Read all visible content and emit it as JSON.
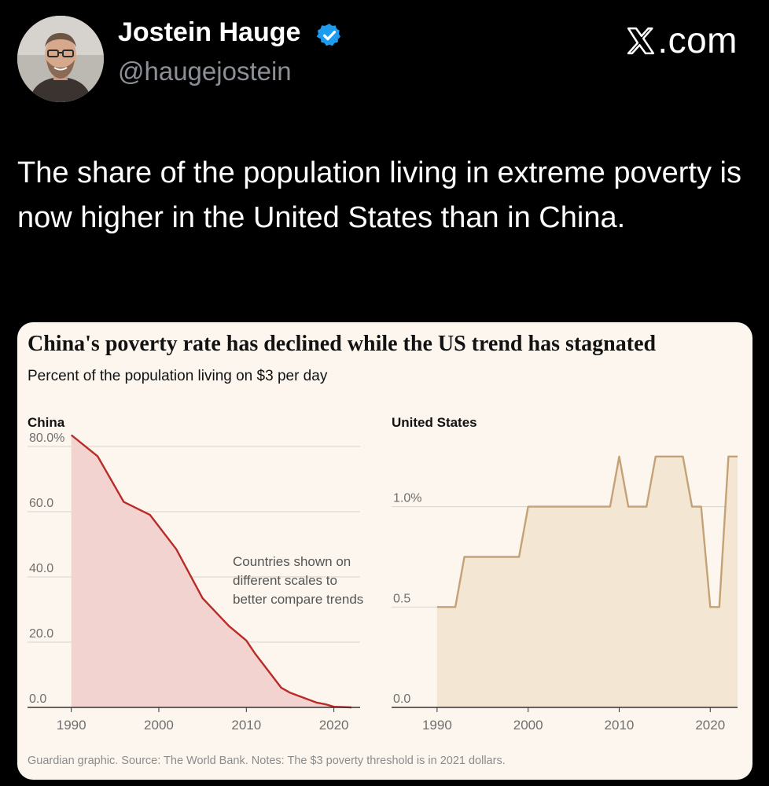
{
  "author": {
    "name": "Jostein Hauge",
    "handle": "@haugejostein",
    "verified_icon": "verified-badge-icon",
    "verified_color": "#1d9bf0"
  },
  "site": {
    "label": ".com",
    "logo_icon": "x-logo-icon"
  },
  "tweet": {
    "text": "The share of the population living in extreme poverty is now higher in the United States than in China."
  },
  "chart_card": {
    "title": "China's poverty rate has declined while the US trend has stagnated",
    "subtitle": "Percent of the population living on $3 per day",
    "annotation": [
      "Countries shown on",
      "different scales to",
      "better compare trends"
    ],
    "footer": "Guardian graphic. Source: The World Bank. Notes: The $3 poverty threshold is in 2021 dollars."
  },
  "chart_data": [
    {
      "type": "area",
      "name": "China",
      "ylim": [
        0,
        80
      ],
      "xlim": [
        1985,
        2023
      ],
      "y_ticks": [
        {
          "value": 80,
          "label": "80.0%"
        },
        {
          "value": 60,
          "label": "60.0"
        },
        {
          "value": 40,
          "label": "40.0"
        },
        {
          "value": 20,
          "label": "20.0"
        },
        {
          "value": 0,
          "label": "0.0"
        }
      ],
      "x_ticks": [
        {
          "value": 1990,
          "label": "1990"
        },
        {
          "value": 2000,
          "label": "2000"
        },
        {
          "value": 2010,
          "label": "2010"
        },
        {
          "value": 2020,
          "label": "2020"
        }
      ],
      "x": [
        1990,
        1993,
        1996,
        1999,
        2002,
        2005,
        2008,
        2010,
        2011,
        2012,
        2013,
        2014,
        2015,
        2016,
        2017,
        2018,
        2019,
        2020,
        2021,
        2022
      ],
      "y": [
        83.5,
        77.0,
        63.0,
        59.0,
        48.5,
        33.5,
        25.0,
        20.5,
        16.5,
        13.0,
        9.5,
        6.0,
        4.5,
        3.5,
        2.5,
        1.5,
        1.0,
        0.2,
        0.1,
        0.0
      ],
      "line_color": "#b92b27",
      "fill_color": "#f2d3d0"
    },
    {
      "type": "area",
      "name": "United States",
      "ylim": [
        0,
        1.3
      ],
      "xlim": [
        1985,
        2023
      ],
      "y_ticks": [
        {
          "value": 1.0,
          "label": "1.0%"
        },
        {
          "value": 0.5,
          "label": "0.5"
        },
        {
          "value": 0,
          "label": "0.0"
        }
      ],
      "x_ticks": [
        {
          "value": 1990,
          "label": "1990"
        },
        {
          "value": 2000,
          "label": "2000"
        },
        {
          "value": 2010,
          "label": "2010"
        },
        {
          "value": 2020,
          "label": "2020"
        }
      ],
      "x": [
        1990,
        1991,
        1992,
        1993,
        1999,
        2000,
        2009,
        2010,
        2011,
        2013,
        2014,
        2017,
        2018,
        2019,
        2020,
        2021,
        2022,
        2023
      ],
      "y": [
        0.5,
        0.5,
        0.5,
        0.75,
        0.75,
        1.0,
        1.0,
        1.25,
        1.0,
        1.0,
        1.25,
        1.25,
        1.0,
        1.0,
        0.5,
        0.5,
        1.25,
        1.25
      ],
      "line_color": "#c4a275",
      "fill_color": "#f3e6d3"
    }
  ]
}
